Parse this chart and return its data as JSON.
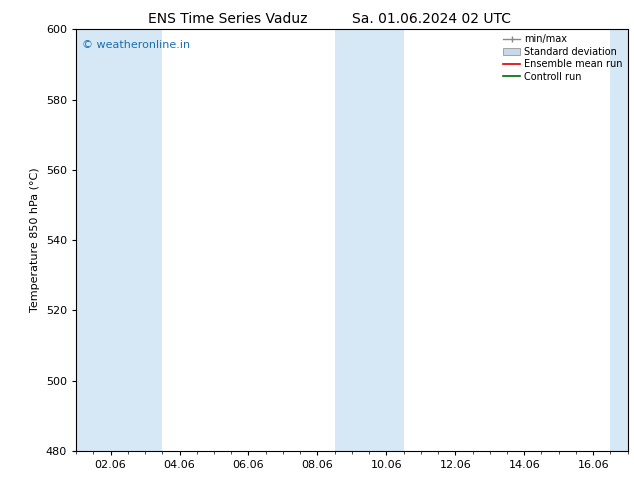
{
  "title1": "ENS Time Series Vaduz",
  "title2": "Sa. 01.06.2024 02 UTC",
  "ylabel": "Temperature 850 hPa (°C)",
  "ylim": [
    480,
    600
  ],
  "yticks": [
    480,
    500,
    520,
    540,
    560,
    580,
    600
  ],
  "xlim": [
    0.0,
    16.0
  ],
  "xtick_labels": [
    "02.06",
    "04.06",
    "06.06",
    "08.06",
    "10.06",
    "12.06",
    "14.06",
    "16.06"
  ],
  "xtick_positions": [
    1.0,
    3.0,
    5.0,
    7.0,
    9.0,
    11.0,
    13.0,
    15.0
  ],
  "shaded_bands": [
    {
      "x_start": 0.0,
      "x_end": 2.5,
      "color": "#d6e8f5"
    },
    {
      "x_start": 7.5,
      "x_end": 9.5,
      "color": "#d6e8f5"
    },
    {
      "x_start": 15.5,
      "x_end": 16.0,
      "color": "#d6e8f5"
    }
  ],
  "watermark": "© weatheronline.in",
  "watermark_color": "#1a6fad",
  "legend_labels": [
    "min/max",
    "Standard deviation",
    "Ensemble mean run",
    "Controll run"
  ],
  "bg_color": "#ffffff",
  "plot_bg_color": "#ffffff",
  "title_fontsize": 10,
  "axis_label_fontsize": 8,
  "tick_fontsize": 8,
  "legend_fontsize": 7,
  "watermark_fontsize": 8
}
